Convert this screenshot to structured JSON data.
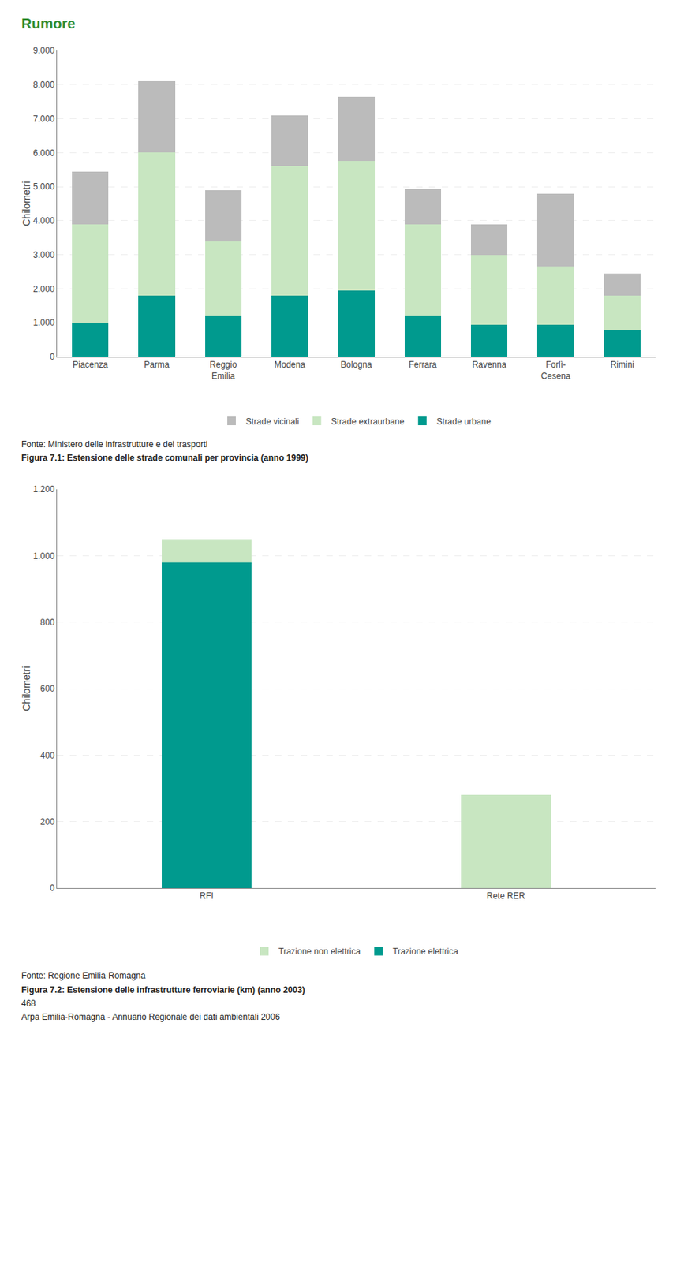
{
  "chart_data": [
    {
      "type": "bar",
      "stacked": true,
      "grid": true,
      "legend": "bottom",
      "title": "Rumore",
      "categories": [
        "Piacenza",
        "Parma",
        "Reggio\nEmilia",
        "Modena",
        "Bologna",
        "Ferrara",
        "Ravenna",
        "Forlì-\nCesena",
        "Rimini"
      ],
      "series": [
        {
          "name": "Strade urbane",
          "color": "#009A8E",
          "values": [
            1000,
            1800,
            1200,
            1800,
            1950,
            1200,
            950,
            950,
            800
          ]
        },
        {
          "name": "Strade extraurbane",
          "color": "#C8E6C1",
          "values": [
            2900,
            4200,
            2200,
            3800,
            3800,
            2700,
            2050,
            1700,
            1000
          ]
        },
        {
          "name": "Strade vicinali",
          "color": "#BBBBBB",
          "values": [
            1550,
            2100,
            1500,
            1500,
            1900,
            1050,
            900,
            2150,
            650
          ]
        }
      ],
      "ylabel": "Chilometri",
      "ylim": [
        0,
        9000
      ],
      "yticks": [
        0,
        {
          "value": 1000,
          "label": "1.000"
        },
        {
          "value": 2000,
          "label": "2.000"
        },
        {
          "value": 3000,
          "label": "3.000"
        },
        {
          "value": 4000,
          "label": "4.000"
        },
        {
          "value": 5000,
          "label": "5.000"
        },
        {
          "value": 6000,
          "label": "6.000"
        },
        {
          "value": 7000,
          "label": "7.000"
        },
        {
          "value": 8000,
          "label": "8.000"
        },
        {
          "value": 9000,
          "label": "9.000"
        }
      ],
      "annotations": [
        "Fonte: Ministero delle infrastrutture e dei trasporti",
        "Figura 7.1: Estensione delle strade comunali per provincia (anno 1999)"
      ]
    },
    {
      "type": "bar",
      "stacked": true,
      "grid": true,
      "legend": "bottom",
      "categories": [
        "RFI",
        "Rete RER"
      ],
      "series": [
        {
          "name": "Trazione elettrica",
          "color": "#009A8E",
          "values": [
            980,
            0
          ]
        },
        {
          "name": "Trazione non elettrica",
          "color": "#C8E6C1",
          "values": [
            70,
            280
          ]
        }
      ],
      "ylabel": "Chilometri",
      "ylim": [
        0,
        1200
      ],
      "yticks": [
        0,
        200,
        400,
        600,
        800,
        {
          "value": 1000,
          "label": "1.000"
        },
        {
          "value": 1200,
          "label": "1.200"
        }
      ],
      "annotations": [
        "Fonte: Regione Emilia-Romagna",
        "Figura 7.2: Estensione delle infrastrutture ferroviarie (km) (anno 2003)",
        "468",
        "Arpa Emilia-Romagna - Annuario Regionale dei dati ambientali 2006"
      ]
    }
  ]
}
